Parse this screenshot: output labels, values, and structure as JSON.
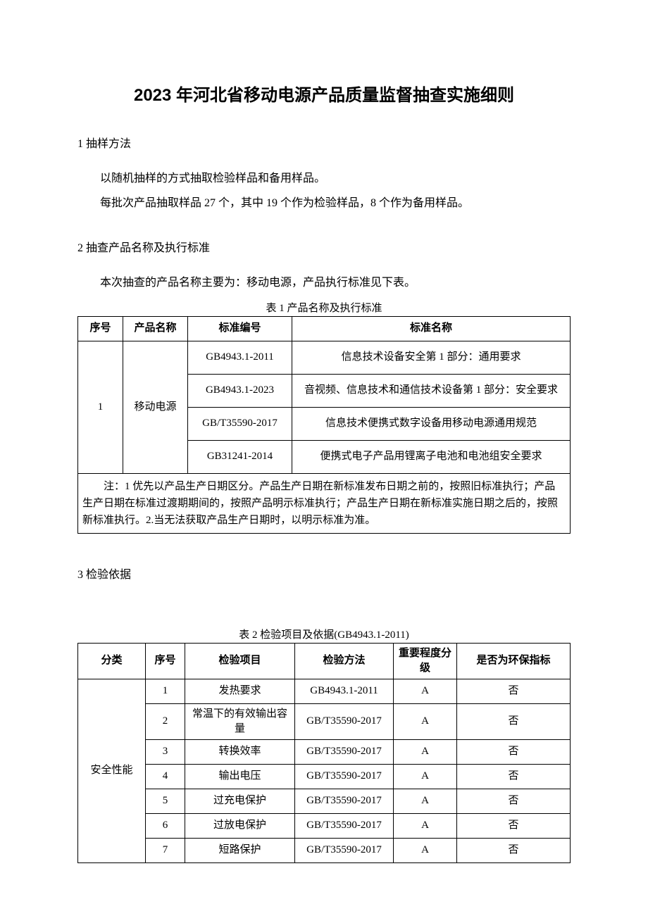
{
  "title": "2023 年河北省移动电源产品质量监督抽查实施细则",
  "sections": {
    "s1": {
      "heading": "1 抽样方法",
      "p1": "以随机抽样的方式抽取检验样品和备用样品。",
      "p2": "每批次产品抽取样品 27 个，其中 19 个作为检验样品，8 个作为备用样品。"
    },
    "s2": {
      "heading": "2 抽查产品名称及执行标准",
      "p1": "本次抽查的产品名称主要为：移动电源，产品执行标准见下表。"
    },
    "s3": {
      "heading": "3 检验依据"
    }
  },
  "table1": {
    "caption": "表 1 产品名称及执行标准",
    "headers": {
      "c1": "序号",
      "c2": "产品名称",
      "c3": "标准编号",
      "c4": "标准名称"
    },
    "seq": "1",
    "product": "移动电源",
    "rows": [
      {
        "code": "GB4943.1-2011",
        "name": "信息技术设备安全第 1 部分：通用要求"
      },
      {
        "code": "GB4943.1-2023",
        "name": "音视频、信息技术和通信技术设备第 1 部分：安全要求"
      },
      {
        "code": "GB/T35590-2017",
        "name": "信息技术便携式数字设备用移动电源通用规范"
      },
      {
        "code": "GB31241-2014",
        "name": "便携式电子产品用锂离子电池和电池组安全要求"
      }
    ],
    "note": "注：1 优先以产品生产日期区分。产品生产日期在新标准发布日期之前的，按照旧标准执行；产品生产日期在标准过渡期期间的，按照产品明示标准执行；产品生产日期在新标准实施日期之后的，按照新标准执行。2.当无法获取产品生产日期时，以明示标准为准。"
  },
  "table2": {
    "caption": "表 2 检验项目及依据(GB4943.1-2011)",
    "headers": {
      "c1": "分类",
      "c2": "序号",
      "c3": "检验项目",
      "c4": "检验方法",
      "c5": "重要程度分级",
      "c6": "是否为环保指标"
    },
    "category": "安全性能",
    "rows": [
      {
        "idx": "1",
        "item": "发热要求",
        "method": "GB4943.1-2011",
        "grade": "A",
        "env": "否"
      },
      {
        "idx": "2",
        "item": "常温下的有效输出容量",
        "method": "GB/T35590-2017",
        "grade": "A",
        "env": "否"
      },
      {
        "idx": "3",
        "item": "转换效率",
        "method": "GB/T35590-2017",
        "grade": "A",
        "env": "否"
      },
      {
        "idx": "4",
        "item": "输出电压",
        "method": "GB/T35590-2017",
        "grade": "A",
        "env": "否"
      },
      {
        "idx": "5",
        "item": "过充电保护",
        "method": "GB/T35590-2017",
        "grade": "A",
        "env": "否"
      },
      {
        "idx": "6",
        "item": "过放电保护",
        "method": "GB/T35590-2017",
        "grade": "A",
        "env": "否"
      },
      {
        "idx": "7",
        "item": "短路保护",
        "method": "GB/T35590-2017",
        "grade": "A",
        "env": "否"
      }
    ]
  },
  "style": {
    "col_widths_t1": [
      "64px",
      "92px",
      "148px",
      "auto"
    ],
    "col_widths_t2": [
      "96px",
      "56px",
      "156px",
      "140px",
      "90px",
      "auto"
    ]
  }
}
